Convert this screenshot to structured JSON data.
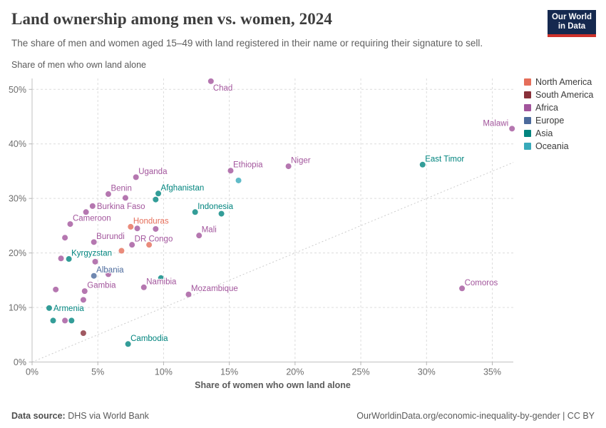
{
  "header": {
    "title": "Land ownership among men vs. women, 2024",
    "subtitle": "The share of men and women aged 15–49 with land registered in their name or requiring their signature to sell.",
    "logo": {
      "line1": "Our World",
      "line2": "in Data",
      "bg_color": "#15294F",
      "accent_color": "#CE322B"
    }
  },
  "chart_data": {
    "type": "scatter",
    "title": "Land ownership among men vs. women, 2024",
    "xlabel": "Share of women who own land alone",
    "ylabel": "Share of men who own land alone",
    "xlim": [
      0,
      36.6
    ],
    "ylim": [
      0,
      52
    ],
    "xticks": [
      0,
      5,
      10,
      15,
      20,
      25,
      30,
      35
    ],
    "yticks": [
      0,
      10,
      20,
      30,
      40,
      50
    ],
    "tick_suffix": "%",
    "grid": true,
    "reference_line": "dashed diagonal y = x parity line from (0,0) to (36.6,36.6)",
    "legend_position": "right",
    "continent_colors": {
      "North America": "#E56E5A",
      "South America": "#883039",
      "Africa": "#A2559C",
      "Europe": "#4C6A9C",
      "Asia": "#00847E",
      "Oceania": "#38AABA"
    },
    "legend_entries": [
      "North America",
      "South America",
      "Africa",
      "Europe",
      "Asia",
      "Oceania"
    ],
    "points": [
      {
        "country": "Chad",
        "continent": "Africa",
        "x": 13.6,
        "y": 51.5,
        "lpos": "below-right"
      },
      {
        "country": "Malawi",
        "continent": "Africa",
        "x": 36.5,
        "y": 42.8,
        "lpos": "left"
      },
      {
        "country": "East Timor",
        "continent": "Asia",
        "x": 29.7,
        "y": 36.2
      },
      {
        "country": "Niger",
        "continent": "Africa",
        "x": 19.5,
        "y": 35.9
      },
      {
        "country": "Ethiopia",
        "continent": "Africa",
        "x": 15.1,
        "y": 35.1
      },
      {
        "country": "Uganda",
        "continent": "Africa",
        "x": 7.9,
        "y": 33.9
      },
      {
        "country": "Afghanistan",
        "continent": "Asia",
        "x": 9.6,
        "y": 30.9
      },
      {
        "country": "Benin",
        "continent": "Africa",
        "x": 5.8,
        "y": 30.8
      },
      {
        "country": "Burkina Faso",
        "continent": "Africa",
        "x": 4.6,
        "y": 28.6,
        "lpos": "right"
      },
      {
        "country": "Indonesia",
        "continent": "Asia",
        "x": 12.4,
        "y": 27.5
      },
      {
        "country": "Cameroon",
        "continent": "Africa",
        "x": 2.9,
        "y": 25.3
      },
      {
        "country": "Honduras",
        "continent": "North America",
        "x": 7.5,
        "y": 24.8
      },
      {
        "country": "Mali",
        "continent": "Africa",
        "x": 12.7,
        "y": 23.2
      },
      {
        "country": "Burundi",
        "continent": "Africa",
        "x": 4.7,
        "y": 22.0
      },
      {
        "country": "DR Congo",
        "continent": "Africa",
        "x": 7.6,
        "y": 21.5
      },
      {
        "country": "Kyrgyzstan",
        "continent": "Asia",
        "x": 2.8,
        "y": 18.9
      },
      {
        "country": "Albania",
        "continent": "Europe",
        "x": 4.7,
        "y": 15.8
      },
      {
        "country": "Namibia",
        "continent": "Africa",
        "x": 8.5,
        "y": 13.7
      },
      {
        "country": "Comoros",
        "continent": "Africa",
        "x": 32.7,
        "y": 13.5
      },
      {
        "country": "Mozambique",
        "continent": "Africa",
        "x": 11.9,
        "y": 12.4
      },
      {
        "country": "Gambia",
        "continent": "Africa",
        "x": 4.0,
        "y": 13.0
      },
      {
        "country": "Armenia",
        "continent": "Asia",
        "x": 1.3,
        "y": 9.9,
        "lpos": "right"
      },
      {
        "country": "Cambodia",
        "continent": "Asia",
        "x": 7.3,
        "y": 3.3
      },
      {
        "continent": "Africa",
        "x": 7.1,
        "y": 30.1
      },
      {
        "continent": "Asia",
        "x": 9.4,
        "y": 29.8
      },
      {
        "continent": "Africa",
        "x": 4.1,
        "y": 27.5
      },
      {
        "continent": "Oceania",
        "x": 15.7,
        "y": 33.3
      },
      {
        "continent": "Asia",
        "x": 14.4,
        "y": 27.2
      },
      {
        "continent": "Africa",
        "x": 8.0,
        "y": 24.5
      },
      {
        "continent": "Africa",
        "x": 9.4,
        "y": 24.4
      },
      {
        "continent": "Africa",
        "x": 2.5,
        "y": 22.8
      },
      {
        "continent": "North America",
        "x": 8.9,
        "y": 21.5
      },
      {
        "continent": "North America",
        "x": 6.8,
        "y": 20.4
      },
      {
        "continent": "Africa",
        "x": 2.2,
        "y": 19.0
      },
      {
        "continent": "Africa",
        "x": 4.8,
        "y": 18.4
      },
      {
        "continent": "Africa",
        "x": 5.8,
        "y": 16.1
      },
      {
        "continent": "Asia",
        "x": 9.8,
        "y": 15.4
      },
      {
        "continent": "Africa",
        "x": 1.8,
        "y": 13.3
      },
      {
        "continent": "Africa",
        "x": 3.9,
        "y": 11.4
      },
      {
        "continent": "Asia",
        "x": 1.6,
        "y": 7.6
      },
      {
        "continent": "Africa",
        "x": 2.5,
        "y": 7.6
      },
      {
        "continent": "Asia",
        "x": 3.0,
        "y": 7.6
      },
      {
        "continent": "South America",
        "x": 3.9,
        "y": 5.3
      }
    ]
  },
  "footer": {
    "source_label": "Data source:",
    "source_text": " DHS via World Bank",
    "right_text": "OurWorldinData.org/economic-inequality-by-gender | CC BY"
  }
}
